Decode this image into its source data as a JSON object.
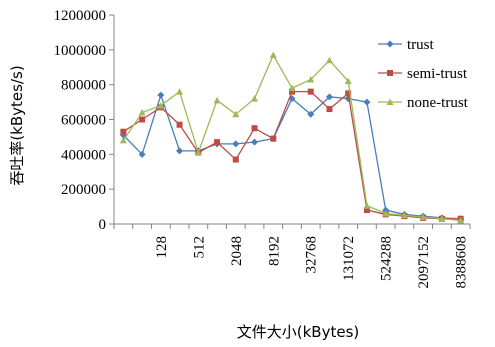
{
  "chart_data": {
    "type": "line",
    "xlabel": "文件大小(kBytes)",
    "ylabel": "吞吐率(kBytes/s)",
    "ylim": [
      0,
      1200000
    ],
    "yticks": [
      0,
      200000,
      400000,
      600000,
      800000,
      1000000,
      1200000
    ],
    "ytick_labels": [
      "0",
      "200000",
      "400000",
      "600000",
      "800000",
      "1000000",
      "1200000"
    ],
    "x": [
      "32",
      "64",
      "128",
      "256",
      "512",
      "1024",
      "2048",
      "4096",
      "8192",
      "16384",
      "32768",
      "65536",
      "131072",
      "262144",
      "524288",
      "1048576",
      "2097152",
      "4194304",
      "8388608"
    ],
    "x_labels_shown": [
      "128",
      "512",
      "2048",
      "8192",
      "32768",
      "131072",
      "524288",
      "2097152",
      "8388608"
    ],
    "grid": false,
    "legend_position": "top-right",
    "series": [
      {
        "name": "trust",
        "color": "#4a7ebb",
        "marker": "diamond",
        "values": [
          510000,
          400000,
          740000,
          420000,
          420000,
          460000,
          460000,
          470000,
          490000,
          720000,
          630000,
          730000,
          720000,
          700000,
          80000,
          55000,
          45000,
          35000,
          30000
        ]
      },
      {
        "name": "semi-trust",
        "color": "#be4b48",
        "marker": "square",
        "values": [
          530000,
          600000,
          670000,
          570000,
          410000,
          470000,
          370000,
          550000,
          490000,
          760000,
          760000,
          660000,
          750000,
          80000,
          55000,
          45000,
          35000,
          30000,
          30000
        ]
      },
      {
        "name": "none-trust",
        "color": "#9bbb59",
        "marker": "triangle",
        "values": [
          480000,
          640000,
          680000,
          760000,
          410000,
          710000,
          630000,
          720000,
          970000,
          780000,
          830000,
          940000,
          820000,
          105000,
          60000,
          50000,
          40000,
          30000,
          20000
        ]
      }
    ]
  }
}
